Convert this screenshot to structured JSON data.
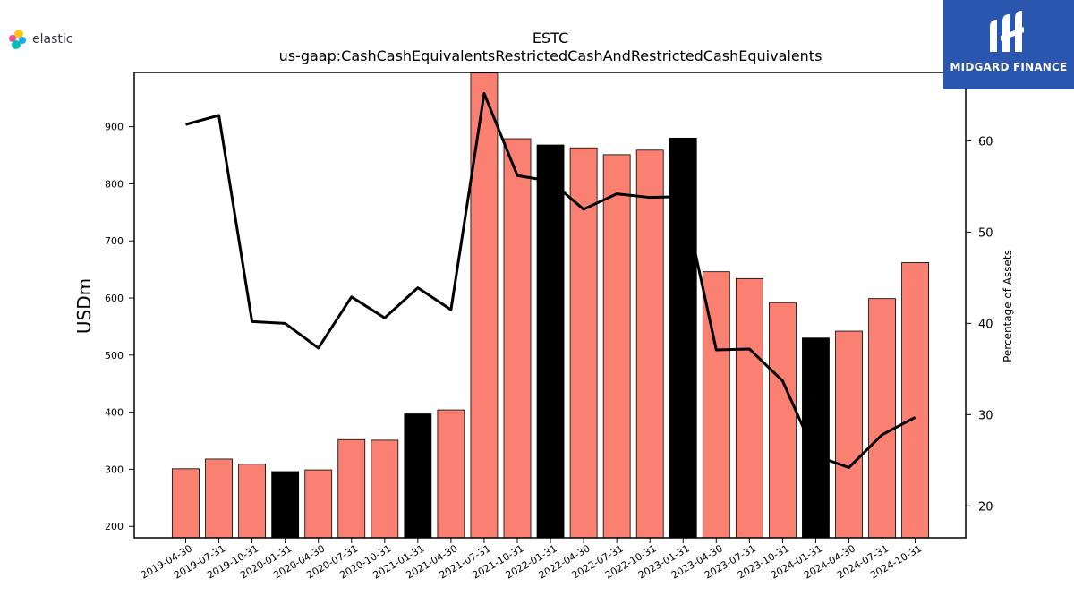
{
  "brand": {
    "name": "elastic",
    "icon": "elastic-logo-icon"
  },
  "watermark": {
    "name": "MIDGARD FINANCE",
    "icon": "midgard-logo-icon",
    "background": "#2a56b0"
  },
  "colors": {
    "bar_default": "#fa8072",
    "bar_highlight": "#000000",
    "line": "#000000"
  },
  "chart_data": {
    "type": "bar",
    "title": "ESTC",
    "subtitle": "us-gaap:CashCashEquivalentsRestrictedCashAndRestrictedCashEquivalents",
    "ylabel": "USDm",
    "y2label": "Percentage of Assets",
    "ylim": [
      180,
      995
    ],
    "y2lim": [
      16.5,
      67.5
    ],
    "yticks": [
      200,
      300,
      400,
      500,
      600,
      700,
      800,
      900
    ],
    "y2ticks": [
      20,
      30,
      40,
      50,
      60
    ],
    "categories": [
      "2019-04-30",
      "2019-07-31",
      "2019-10-31",
      "2020-01-31",
      "2020-04-30",
      "2020-07-31",
      "2020-10-31",
      "2021-01-31",
      "2021-04-30",
      "2021-07-31",
      "2021-10-31",
      "2022-01-31",
      "2022-04-30",
      "2022-07-31",
      "2022-10-31",
      "2023-01-31",
      "2023-04-30",
      "2023-07-31",
      "2023-10-31",
      "2024-01-31",
      "2024-04-30",
      "2024-07-31",
      "2024-10-31"
    ],
    "series": [
      {
        "type": "bar",
        "values": [
          301,
          318,
          309,
          296,
          299,
          352,
          351,
          397,
          404,
          994,
          879,
          868,
          863,
          851,
          859,
          880,
          646,
          634,
          592,
          530,
          542,
          599,
          662
        ],
        "highlight": [
          false,
          false,
          false,
          true,
          false,
          false,
          false,
          true,
          false,
          false,
          false,
          true,
          false,
          false,
          false,
          true,
          false,
          false,
          false,
          true,
          false,
          false,
          false
        ]
      },
      {
        "type": "line",
        "axis": "right",
        "values": [
          61.8,
          62.8,
          40.2,
          40.0,
          37.3,
          42.9,
          40.6,
          43.9,
          41.5,
          65.2,
          56.2,
          55.6,
          52.5,
          54.2,
          53.8,
          53.9,
          37.1,
          37.2,
          33.7,
          25.5,
          24.2,
          27.8,
          29.7
        ]
      }
    ],
    "grid": false
  }
}
